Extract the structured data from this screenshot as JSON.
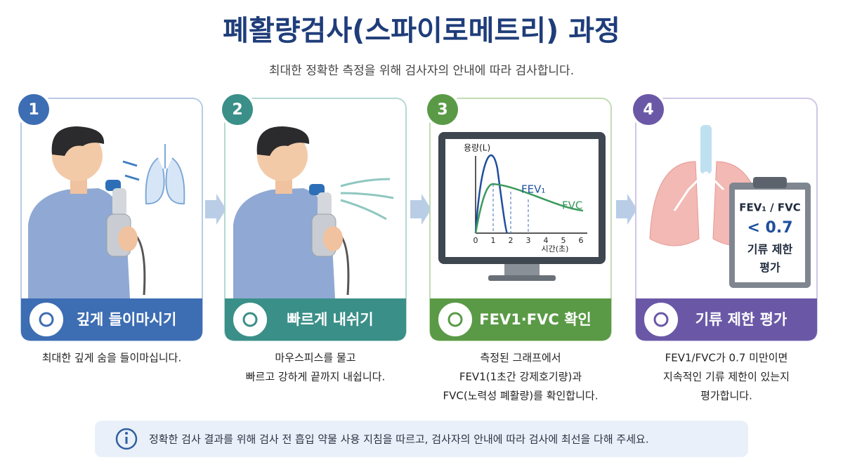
{
  "header": {
    "title": "폐활량검사(스파이로메트리) 과정",
    "subtitle": "최대한 정확한 측정을 위해 검사자의 안내에 따라 검사합니다."
  },
  "steps": [
    {
      "number": "1",
      "label": "깊게 들이마시기",
      "description": [
        "최대한 깊게 숨을 들이마십니다."
      ]
    },
    {
      "number": "2",
      "label": "빠르게 내쉬기",
      "description": [
        "마우스피스를 물고",
        "빠르고 강하게 끝까지 내쉽니다."
      ]
    },
    {
      "number": "3",
      "label": "FEV1·FVC 확인",
      "description": [
        "측정된 그래프에서",
        "FEV1(1초간 강제호기량)과",
        "FVC(노력성 폐활량)를 확인합니다."
      ]
    },
    {
      "number": "4",
      "label": "기류 제한 평가",
      "description": [
        "FEV1/FVC가 0.7 미만이면",
        "지속적인 기류 제한이 있는지",
        "평가합니다."
      ]
    }
  ],
  "graph": {
    "y_label": "용량(L)",
    "x_label": "시간(초)",
    "x_ticks": [
      "0",
      "1",
      "2",
      "3",
      "4",
      "5",
      "6"
    ],
    "fev1_label": "FEV₁",
    "fvc_label": "FVC"
  },
  "clipboard": {
    "ratio": "FEV₁ / FVC",
    "threshold": "< 0.7",
    "lines": [
      "기류 제한",
      "평가"
    ]
  },
  "footer": {
    "note": "정확한 검사 결과를 위해 검사 전 흡입 약물 사용 지침을 따르고, 검사자의 안내에 따라 검사에 최선을 다해 주세요."
  }
}
